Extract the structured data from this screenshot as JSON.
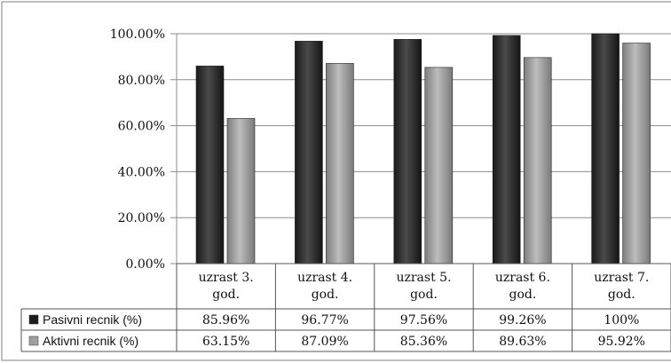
{
  "chart_data": {
    "type": "bar",
    "categories": [
      [
        "uzrast 3.",
        "god."
      ],
      [
        "uzrast 4.",
        "god."
      ],
      [
        "uzrast 5.",
        "god."
      ],
      [
        "uzrast 6.",
        "god."
      ],
      [
        "uzrast 7.",
        "god."
      ]
    ],
    "series": [
      {
        "name": "Pasivni recnik (%)",
        "values": [
          85.96,
          96.77,
          97.56,
          99.26,
          100
        ],
        "labels": [
          "85.96%",
          "96.77%",
          "97.56%",
          "99.26%",
          "100%"
        ],
        "color": "#2b2b2b"
      },
      {
        "name": "Aktivni recnik (%)",
        "values": [
          63.15,
          87.09,
          85.36,
          89.63,
          95.92
        ],
        "labels": [
          "63.15%",
          "87.09%",
          "85.36%",
          "89.63%",
          "95.92%"
        ],
        "color": "#9a9a9a"
      }
    ],
    "ylim": [
      0,
      100
    ],
    "yticks": [
      "0.00%",
      "20.00%",
      "40.00%",
      "60.00%",
      "80.00%",
      "100.00%"
    ],
    "grid": true,
    "legend": "data-table"
  }
}
